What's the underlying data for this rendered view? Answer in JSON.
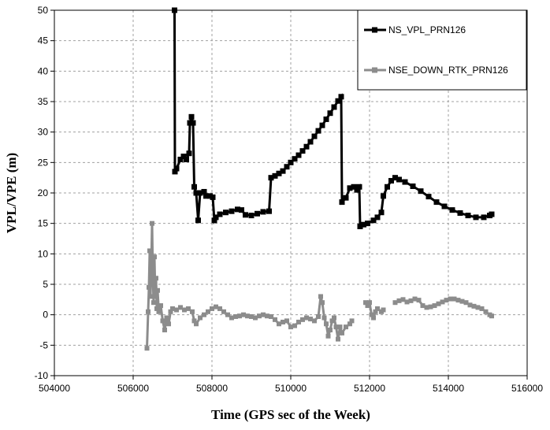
{
  "chart_data": {
    "type": "line",
    "title": "",
    "xlabel": "Time (GPS sec of the Week)",
    "ylabel": "VPL/VPE (m)",
    "xlim": [
      504000,
      516000
    ],
    "ylim": [
      -10,
      50
    ],
    "xticks": [
      504000,
      506000,
      508000,
      510000,
      512000,
      514000,
      516000
    ],
    "yticks": [
      -10,
      -5,
      0,
      5,
      10,
      15,
      20,
      25,
      30,
      35,
      40,
      45,
      50
    ],
    "grid": "dashed horizontal and vertical",
    "legend_position": "top-right",
    "series": [
      {
        "name": "NS_VPL_PRN126",
        "color": "#000000",
        "marker": "square",
        "points": [
          [
            507050,
            50
          ],
          [
            507060,
            23.5
          ],
          [
            507100,
            24
          ],
          [
            507200,
            25.5
          ],
          [
            507280,
            26
          ],
          [
            507350,
            25.5
          ],
          [
            507420,
            26.5
          ],
          [
            507440,
            31.5
          ],
          [
            507480,
            32.5
          ],
          [
            507520,
            31.5
          ],
          [
            507550,
            21
          ],
          [
            507600,
            20
          ],
          [
            507650,
            15.5
          ],
          [
            507700,
            20
          ],
          [
            507800,
            20.2
          ],
          [
            507850,
            19.5
          ],
          [
            507950,
            19.5
          ],
          [
            508020,
            19.3
          ],
          [
            508060,
            15.5
          ],
          [
            508100,
            16
          ],
          [
            508200,
            16.5
          ],
          [
            508350,
            16.8
          ],
          [
            508500,
            17
          ],
          [
            508650,
            17.3
          ],
          [
            508750,
            17.2
          ],
          [
            508850,
            16.4
          ],
          [
            509000,
            16.3
          ],
          [
            509150,
            16.6
          ],
          [
            509300,
            16.9
          ],
          [
            509450,
            17
          ],
          [
            509500,
            22.5
          ],
          [
            509600,
            22.8
          ],
          [
            509700,
            23.2
          ],
          [
            509800,
            23.6
          ],
          [
            509900,
            24.3
          ],
          [
            510000,
            25
          ],
          [
            510100,
            25.6
          ],
          [
            510200,
            26.2
          ],
          [
            510300,
            26.9
          ],
          [
            510400,
            27.6
          ],
          [
            510500,
            28.4
          ],
          [
            510600,
            29.3
          ],
          [
            510700,
            30.2
          ],
          [
            510800,
            31.1
          ],
          [
            510900,
            32.1
          ],
          [
            511000,
            33.1
          ],
          [
            511100,
            34.1
          ],
          [
            511200,
            35.1
          ],
          [
            511280,
            35.8
          ],
          [
            511300,
            18.5
          ],
          [
            511400,
            19.2
          ],
          [
            511500,
            20.8
          ],
          [
            511600,
            21
          ],
          [
            511680,
            20.5
          ],
          [
            511740,
            21
          ],
          [
            511760,
            14.5
          ],
          [
            511850,
            14.8
          ],
          [
            511950,
            15
          ],
          [
            512100,
            15.5
          ],
          [
            512200,
            16
          ],
          [
            512300,
            16.8
          ],
          [
            512350,
            19.5
          ],
          [
            512450,
            21
          ],
          [
            512550,
            22
          ],
          [
            512650,
            22.5
          ],
          [
            512750,
            22.2
          ],
          [
            512900,
            21.8
          ],
          [
            513100,
            21.1
          ],
          [
            513300,
            20.3
          ],
          [
            513500,
            19.4
          ],
          [
            513700,
            18.5
          ],
          [
            513900,
            17.8
          ],
          [
            514100,
            17.2
          ],
          [
            514300,
            16.7
          ],
          [
            514500,
            16.3
          ],
          [
            514700,
            16
          ],
          [
            514900,
            16
          ],
          [
            515050,
            16.3
          ],
          [
            515100,
            16.5
          ]
        ]
      },
      {
        "name": "NSE_DOWN_RTK_PRN126",
        "color": "#8c8c8c",
        "marker": "square",
        "points": [
          [
            506350,
            -5.5
          ],
          [
            506380,
            0.5
          ],
          [
            506400,
            4.5
          ],
          [
            506420,
            10.5
          ],
          [
            506440,
            3
          ],
          [
            506460,
            8
          ],
          [
            506480,
            15
          ],
          [
            506500,
            6
          ],
          [
            506520,
            2
          ],
          [
            506540,
            9.5
          ],
          [
            506560,
            3
          ],
          [
            506580,
            6
          ],
          [
            506600,
            1
          ],
          [
            506620,
            4
          ],
          [
            506650,
            0.5
          ],
          [
            506700,
            1.5
          ],
          [
            506750,
            -1
          ],
          [
            506800,
            -2.5
          ],
          [
            506850,
            -0.5
          ],
          [
            506900,
            -1.5
          ],
          [
            506950,
            0.5
          ],
          [
            507000,
            1
          ],
          [
            507100,
            0.8
          ],
          [
            507200,
            1.2
          ],
          [
            507300,
            0.8
          ],
          [
            507400,
            1
          ],
          [
            507500,
            0.5
          ],
          [
            507550,
            -1
          ],
          [
            507600,
            -1.5
          ],
          [
            507700,
            -0.5
          ],
          [
            507800,
            0
          ],
          [
            507900,
            0.5
          ],
          [
            508000,
            1
          ],
          [
            508100,
            1.3
          ],
          [
            508200,
            1
          ],
          [
            508300,
            0.5
          ],
          [
            508400,
            0
          ],
          [
            508500,
            -0.5
          ],
          [
            508600,
            -0.3
          ],
          [
            508700,
            -0.2
          ],
          [
            508800,
            0
          ],
          [
            508900,
            -0.2
          ],
          [
            509000,
            -0.3
          ],
          [
            509100,
            -0.5
          ],
          [
            509200,
            -0.2
          ],
          [
            509300,
            0
          ],
          [
            509400,
            -0.2
          ],
          [
            509500,
            -0.3
          ],
          [
            509600,
            -0.8
          ],
          [
            509700,
            -1.5
          ],
          [
            509800,
            -1.2
          ],
          [
            509900,
            -1
          ],
          [
            510000,
            -2
          ],
          [
            510100,
            -1.8
          ],
          [
            510200,
            -1.2
          ],
          [
            510300,
            -0.8
          ],
          [
            510400,
            -0.5
          ],
          [
            510500,
            -0.7
          ],
          [
            510600,
            -1
          ],
          [
            510700,
            -0.3
          ],
          [
            510760,
            3
          ],
          [
            510800,
            2
          ],
          [
            510850,
            -0.5
          ],
          [
            510900,
            -1.5
          ],
          [
            510950,
            -3.5
          ],
          [
            511000,
            -2.5
          ],
          [
            511050,
            -1
          ],
          [
            511100,
            -0.5
          ],
          [
            511150,
            -2
          ],
          [
            511200,
            -4
          ],
          [
            511250,
            -2
          ],
          [
            511300,
            -3
          ],
          [
            511400,
            -2
          ],
          [
            511500,
            -1.5
          ],
          [
            511550,
            -1
          ],
          [
            511900,
            2
          ],
          [
            511950,
            1.5
          ],
          [
            512000,
            2
          ],
          [
            512050,
            0
          ],
          [
            512100,
            -0.5
          ],
          [
            512150,
            0.5
          ],
          [
            512200,
            1
          ],
          [
            512300,
            0.5
          ],
          [
            512350,
            0.8
          ],
          [
            512650,
            2
          ],
          [
            512750,
            2.3
          ],
          [
            512850,
            2.5
          ],
          [
            512950,
            2.1
          ],
          [
            513050,
            2.3
          ],
          [
            513150,
            2.6
          ],
          [
            513250,
            2.4
          ],
          [
            513350,
            1.5
          ],
          [
            513450,
            1.2
          ],
          [
            513550,
            1.3
          ],
          [
            513650,
            1.5
          ],
          [
            513750,
            1.8
          ],
          [
            513850,
            2.1
          ],
          [
            513950,
            2.4
          ],
          [
            514050,
            2.6
          ],
          [
            514150,
            2.6
          ],
          [
            514250,
            2.4
          ],
          [
            514350,
            2.2
          ],
          [
            514450,
            2
          ],
          [
            514550,
            1.6
          ],
          [
            514650,
            1.4
          ],
          [
            514750,
            1.2
          ],
          [
            514850,
            1
          ],
          [
            514950,
            0.5
          ],
          [
            515050,
            0
          ],
          [
            515100,
            -0.2
          ]
        ]
      }
    ]
  }
}
